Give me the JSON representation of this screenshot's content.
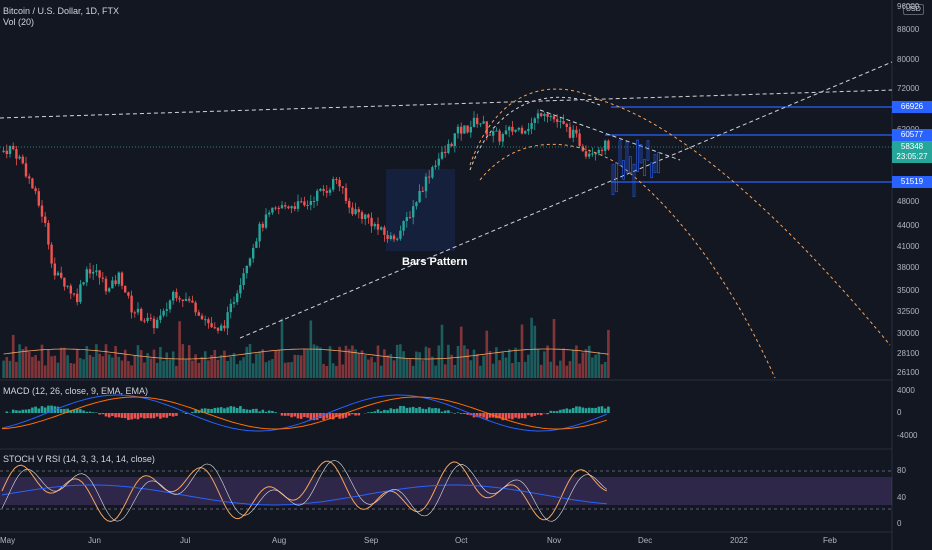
{
  "header": {
    "symbol_title": "Bitcoin / U.S. Dollar, 1D, FTX",
    "volume_title": "Vol (20)",
    "currency": "USD"
  },
  "macd_pane": {
    "title": "MACD (12, 26, close, 9, EMA, EMA)"
  },
  "stoch_pane": {
    "title": "STOCH V RSI (14, 3, 3, 14, 14, close)"
  },
  "annotation": "Bars Pattern",
  "price_axis": [
    "96000",
    "88000",
    "80000",
    "72000",
    "66926",
    "62000",
    "60577",
    "58348",
    "23:05:27",
    "51519",
    "48000",
    "44000",
    "41000",
    "38000",
    "35000",
    "32500",
    "30000",
    "28100",
    "26100"
  ],
  "price_labels": {
    "p66926": "66926",
    "p60577": "60577",
    "p58348": "58348",
    "timer": "23:05:27",
    "p51519": "51519"
  },
  "price_ticks": [
    "96000",
    "88000",
    "80000",
    "72000",
    "62000",
    "48000",
    "44000",
    "41000",
    "38000",
    "35000",
    "32500",
    "30000",
    "28100",
    "26100"
  ],
  "macd_ticks": [
    "4000",
    "0",
    "-4000"
  ],
  "stoch_ticks": [
    "80",
    "40",
    "0"
  ],
  "time_axis": [
    "May",
    "Jun",
    "Jul",
    "Aug",
    "Sep",
    "Oct",
    "Nov",
    "Dec",
    "2022",
    "Feb"
  ],
  "colors": {
    "background": "#131722",
    "bull": "#26a69a",
    "bear": "#ef5350",
    "level_line": "#2962ff",
    "current_price": "#26a69a",
    "dashed_white": "#d1d4dc",
    "dashed_orange": "#f7a35c",
    "macd_line": "#2962ff",
    "signal_line": "#ff6d00",
    "stoch_band": "#7e57c2"
  },
  "chart_data": {
    "type": "candlestick",
    "symbol": "Bitcoin / U.S. Dollar",
    "interval": "1D",
    "exchange": "FTX",
    "price_levels": [
      66926,
      60577,
      51519
    ],
    "last_price": 58348,
    "ylim": [
      26100,
      96000
    ],
    "y_scale": "log",
    "x_range": [
      "2021-05",
      "2022-02"
    ],
    "approx_closes": [
      57000,
      58000,
      55000,
      50000,
      45000,
      37000,
      36000,
      34000,
      38000,
      37000,
      35000,
      37000,
      33000,
      32000,
      31000,
      32000,
      35000,
      34000,
      33000,
      31500,
      30000,
      32000,
      36000,
      40000,
      44000,
      46000,
      47000,
      47500,
      47000,
      49000,
      50000,
      52000,
      47000,
      46000,
      45000,
      43000,
      42000,
      43500,
      47000,
      51000,
      55000,
      57000,
      61000,
      62000,
      64000,
      61000,
      60000,
      61500,
      62000,
      63000,
      66500,
      64000,
      62000,
      60000,
      57000,
      58000,
      58348
    ]
  }
}
